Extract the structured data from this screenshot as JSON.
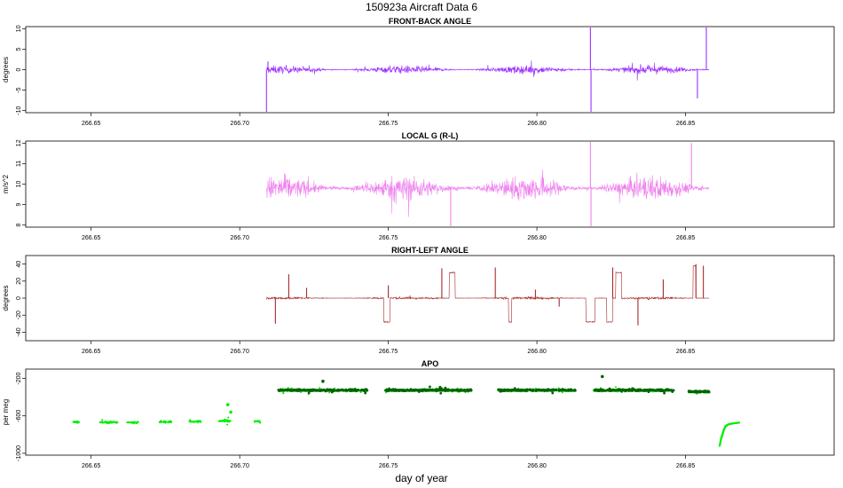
{
  "figure": {
    "title": "150923a   Aircraft Data 6",
    "xlabel": "day of year"
  },
  "chart_data": [
    {
      "type": "line",
      "title": "FRONT-BACK ANGLE",
      "ylabel": "degrees",
      "xlim": [
        266.628,
        266.9
      ],
      "ylim": [
        -10.5,
        10.5
      ],
      "xticks": [
        "266.65",
        "266.70",
        "266.75",
        "266.80",
        "266.85"
      ],
      "yticks": [
        "-10",
        "-5",
        "0",
        "5",
        "10"
      ],
      "color": "#9b30ff",
      "series": [
        {
          "x_range": [
            266.709,
            266.858
          ],
          "baseline": 0,
          "amplitude": 1.5,
          "spikes": [
            {
              "x": 266.709,
              "y": -10.5
            },
            {
              "x": 266.7095,
              "y": 2
            },
            {
              "x": 266.818,
              "y": 10.5
            },
            {
              "x": 266.8182,
              "y": -10.5
            },
            {
              "x": 266.854,
              "y": -7
            },
            {
              "x": 266.857,
              "y": 10.5
            }
          ]
        }
      ]
    },
    {
      "type": "line",
      "title": "LOCAL G (R-L)",
      "ylabel": "m/s^2",
      "xlim": [
        266.628,
        266.9
      ],
      "ylim": [
        7.9,
        12.1
      ],
      "xticks": [
        "266.65",
        "266.70",
        "266.75",
        "266.80",
        "266.85"
      ],
      "yticks": [
        "8",
        "9",
        "10",
        "11",
        "12"
      ],
      "color": "#ee82ee",
      "series": [
        {
          "x_range": [
            266.709,
            266.858
          ],
          "baseline": 9.8,
          "amplitude": 0.9,
          "spikes": [
            {
              "x": 266.771,
              "y": 7.9
            },
            {
              "x": 266.818,
              "y": 12.1
            },
            {
              "x": 266.8182,
              "y": 7.9
            },
            {
              "x": 266.852,
              "y": 12
            }
          ]
        }
      ]
    },
    {
      "type": "line",
      "title": "RIGHT-LEFT ANGLE",
      "ylabel": "degrees",
      "xlim": [
        266.628,
        266.9
      ],
      "ylim": [
        -50,
        50
      ],
      "xticks": [
        "266.65",
        "266.70",
        "266.75",
        "266.80",
        "266.85"
      ],
      "yticks": [
        "-40",
        "-20",
        "0",
        "20",
        "40"
      ],
      "color": "#a52a2a",
      "series": [
        {
          "x_range": [
            266.709,
            266.858
          ],
          "baseline": 0,
          "amplitude": 2,
          "segments": [
            {
              "x0": 266.7705,
              "x1": 266.7725,
              "y": 30
            },
            {
              "x0": 266.8265,
              "x1": 266.8285,
              "y": 30
            },
            {
              "x0": 266.8525,
              "x1": 266.8535,
              "y": 38
            },
            {
              "x0": 266.8165,
              "x1": 266.8195,
              "y": -28
            },
            {
              "x0": 266.7485,
              "x1": 266.7505,
              "y": -28
            },
            {
              "x0": 266.7905,
              "x1": 266.7915,
              "y": -28
            },
            {
              "x0": 266.8235,
              "x1": 266.8255,
              "y": -28
            }
          ],
          "spikes": [
            {
              "x": 266.712,
              "y": -30
            },
            {
              "x": 266.7165,
              "y": 28
            },
            {
              "x": 266.7225,
              "y": 12
            },
            {
              "x": 266.75,
              "y": 15
            },
            {
              "x": 266.768,
              "y": 35
            },
            {
              "x": 266.786,
              "y": 36
            },
            {
              "x": 266.7995,
              "y": 10
            },
            {
              "x": 266.8075,
              "y": -10
            },
            {
              "x": 266.8255,
              "y": 36
            },
            {
              "x": 266.834,
              "y": -32
            },
            {
              "x": 266.8425,
              "y": 22
            },
            {
              "x": 266.8535,
              "y": 40
            },
            {
              "x": 266.856,
              "y": 38
            }
          ]
        }
      ]
    },
    {
      "type": "scatter",
      "title": "APO",
      "ylabel": "per meg",
      "xlim": [
        266.628,
        266.9
      ],
      "ylim": [
        -1020,
        -100
      ],
      "xticks": [
        "266.65",
        "266.70",
        "266.75",
        "266.80",
        "266.85"
      ],
      "yticks": [
        "-1000",
        "-600",
        "-200"
      ],
      "series": [
        {
          "name": "",
          "color": "#00ee00",
          "clusters": [
            {
              "x0": 266.644,
              "x1": 266.646,
              "y": -665
            },
            {
              "x0": 266.653,
              "x1": 266.659,
              "y": -668
            },
            {
              "x0": 266.662,
              "x1": 266.666,
              "y": -670
            },
            {
              "x0": 266.673,
              "x1": 266.677,
              "y": -664
            },
            {
              "x0": 266.683,
              "x1": 266.687,
              "y": -660
            },
            {
              "x0": 266.693,
              "x1": 266.697,
              "y": -655
            },
            {
              "x0": 266.705,
              "x1": 266.707,
              "y": -658
            },
            {
              "x0": 266.713,
              "x1": 266.743,
              "y": -330
            },
            {
              "x0": 266.749,
              "x1": 266.778,
              "y": -330
            },
            {
              "x0": 266.787,
              "x1": 266.813,
              "y": -330
            },
            {
              "x0": 266.819,
              "x1": 266.846,
              "y": -330
            },
            {
              "x0": 266.851,
              "x1": 266.858,
              "y": -345
            }
          ],
          "curve": [
            {
              "x": 266.8615,
              "y": -920
            },
            {
              "x": 266.862,
              "y": -840
            },
            {
              "x": 266.8625,
              "y": -790
            },
            {
              "x": 266.863,
              "y": -740
            },
            {
              "x": 266.8635,
              "y": -710
            },
            {
              "x": 266.8645,
              "y": -690
            },
            {
              "x": 266.866,
              "y": -680
            },
            {
              "x": 266.868,
              "y": -673
            }
          ],
          "spikes": [
            {
              "x": 266.696,
              "y": -480
            },
            {
              "x": 266.697,
              "y": -560
            }
          ]
        },
        {
          "name": "",
          "color": "#006400",
          "clusters": [
            {
              "x0": 266.713,
              "x1": 266.743,
              "y": -325
            },
            {
              "x0": 266.749,
              "x1": 266.778,
              "y": -325
            },
            {
              "x0": 266.787,
              "x1": 266.813,
              "y": -325
            },
            {
              "x0": 266.819,
              "x1": 266.846,
              "y": -325
            },
            {
              "x0": 266.851,
              "x1": 266.858,
              "y": -340
            }
          ],
          "spikes": [
            {
              "x": 266.728,
              "y": -230
            },
            {
              "x": 266.822,
              "y": -180
            }
          ]
        }
      ]
    }
  ]
}
